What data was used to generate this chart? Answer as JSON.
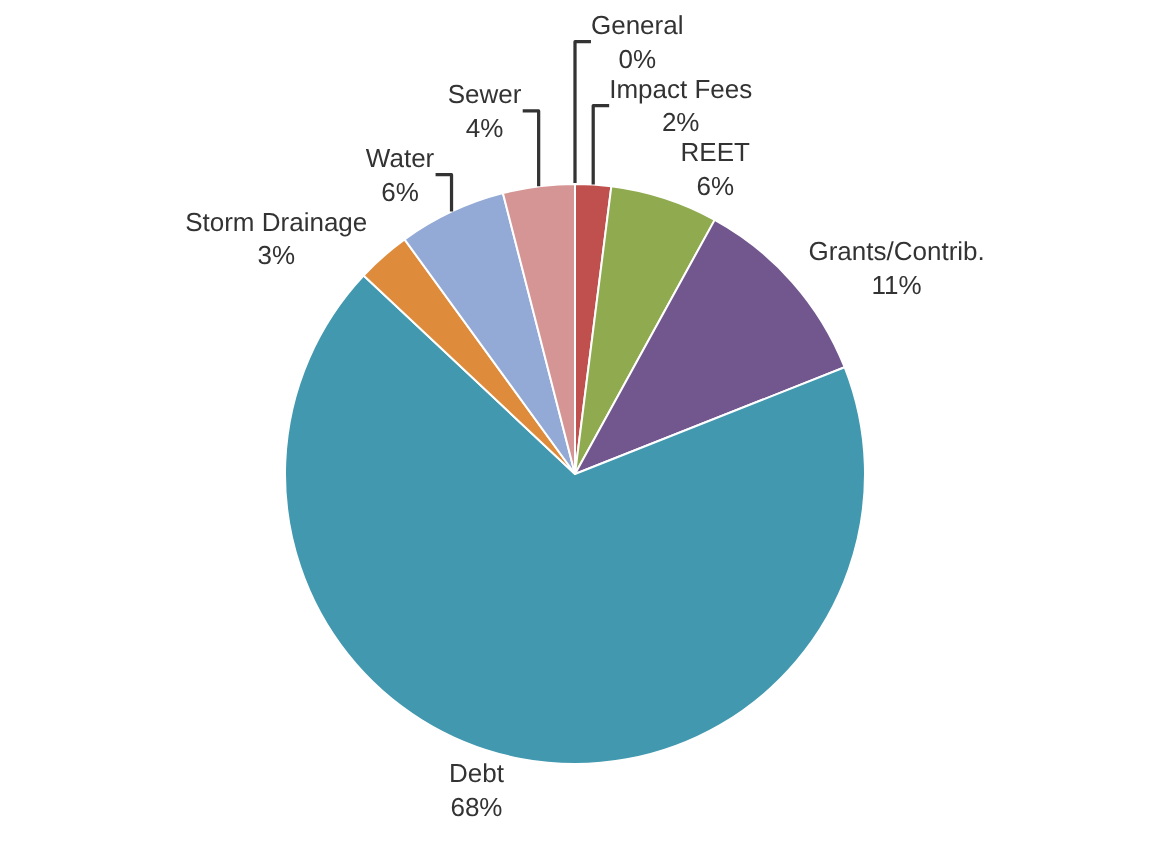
{
  "chart_data": {
    "type": "pie",
    "categories": [
      "General",
      "Impact Fees",
      "REET",
      "Grants/Contrib.",
      "Debt",
      "Storm Drainage",
      "Water",
      "Sewer"
    ],
    "values": [
      0,
      2,
      6,
      11,
      68,
      3,
      6,
      4
    ],
    "value_labels": [
      "0%",
      "2%",
      "6%",
      "11%",
      "68%",
      "3%",
      "6%",
      "4%"
    ],
    "colors": [
      "#4f81bd",
      "#c0504d",
      "#8faa4f",
      "#72578f",
      "#4198af",
      "#de8b3b",
      "#93a9d6",
      "#d69595"
    ],
    "legend": false
  }
}
